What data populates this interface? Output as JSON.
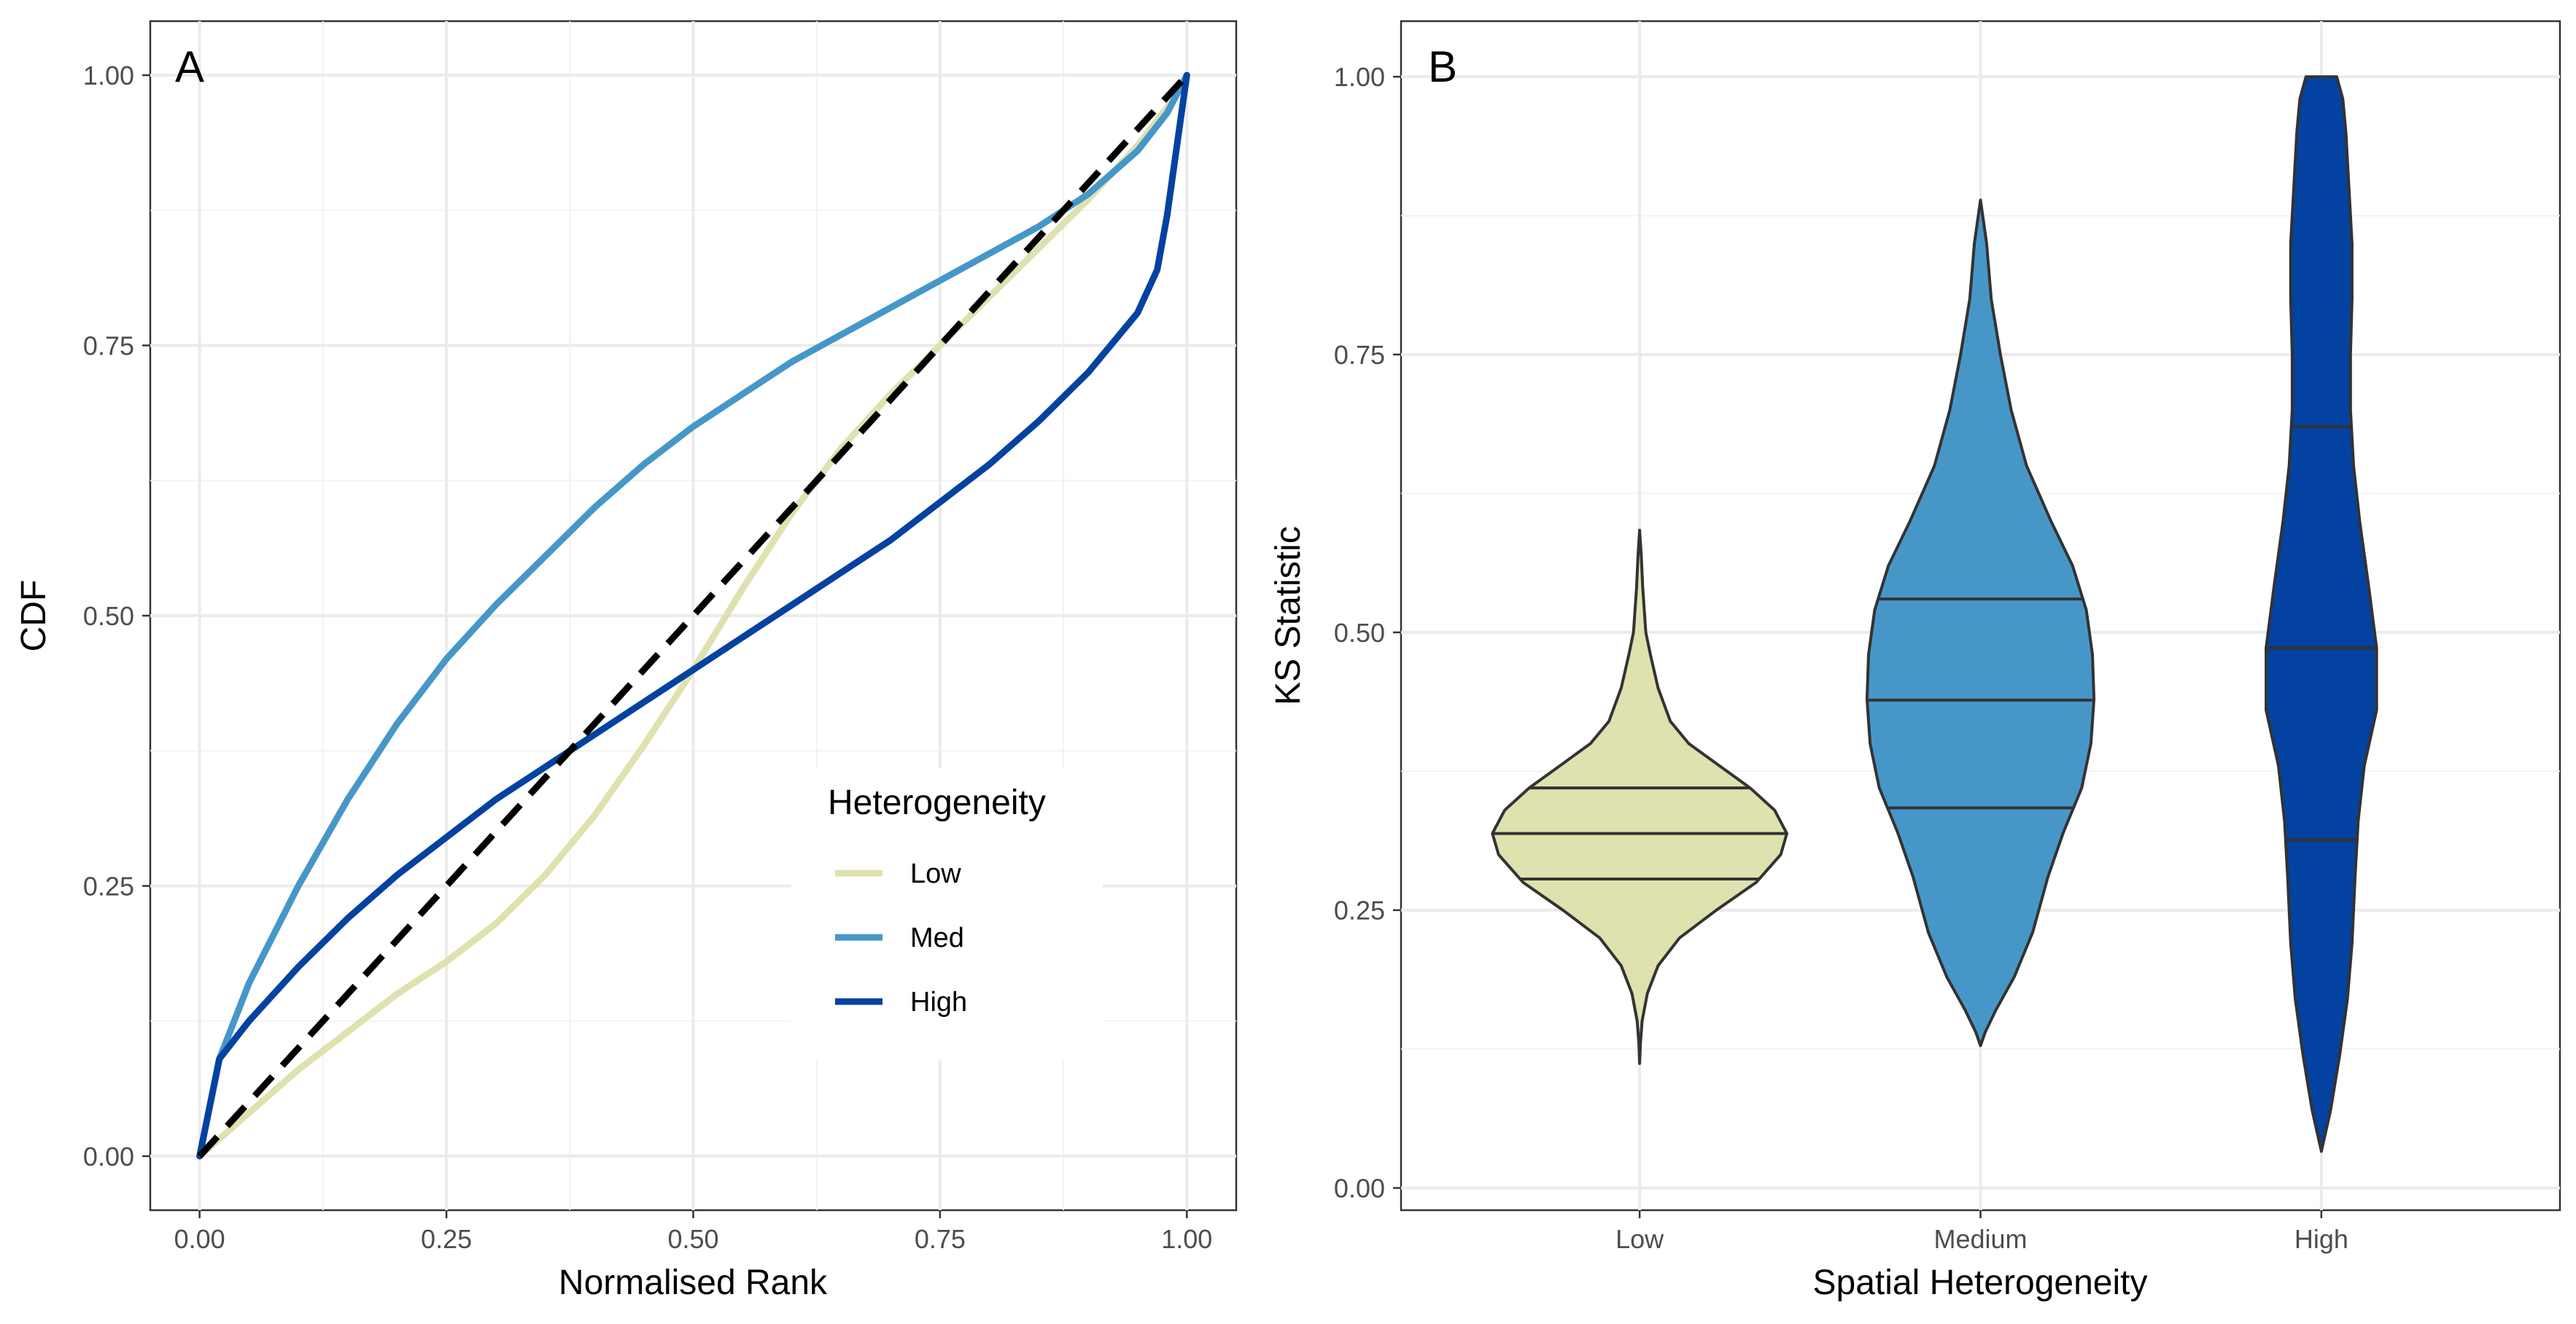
{
  "chart_data": [
    {
      "panel": "A",
      "type": "line",
      "xlabel": "Normalised Rank",
      "ylabel": "CDF",
      "xlim": [
        -0.05,
        1.05
      ],
      "ylim": [
        -0.05,
        1.05
      ],
      "x_ticks": [
        {
          "value": 0,
          "label": "0.00"
        },
        {
          "value": 0.25,
          "label": "0.25"
        },
        {
          "value": 0.5,
          "label": "0.50"
        },
        {
          "value": 0.75,
          "label": "0.75"
        },
        {
          "value": 1,
          "label": "1.00"
        }
      ],
      "y_ticks": [
        {
          "value": 0,
          "label": "0.00"
        },
        {
          "value": 0.25,
          "label": "0.25"
        },
        {
          "value": 0.5,
          "label": "0.50"
        },
        {
          "value": 0.75,
          "label": "0.75"
        },
        {
          "value": 1,
          "label": "1.00"
        }
      ],
      "grid": true,
      "legend": {
        "title": "Heterogeneity",
        "position": "bottom-right"
      },
      "reference_line": {
        "name": "1:1 line",
        "x": [
          0,
          1
        ],
        "y": [
          0,
          1
        ],
        "color": "#000000",
        "style": "dashed"
      },
      "series": [
        {
          "name": "Low",
          "color": "#DFE1AE",
          "x": [
            0,
            0.05,
            0.1,
            0.15,
            0.2,
            0.25,
            0.3,
            0.35,
            0.4,
            0.45,
            0.5,
            0.55,
            0.6,
            0.65,
            0.7,
            0.75,
            0.8,
            0.85,
            0.9,
            0.95,
            0.98,
            1.0
          ],
          "y": [
            0,
            0.04,
            0.08,
            0.115,
            0.15,
            0.18,
            0.215,
            0.26,
            0.315,
            0.38,
            0.45,
            0.525,
            0.595,
            0.655,
            0.705,
            0.75,
            0.795,
            0.84,
            0.885,
            0.935,
            0.97,
            1.0
          ]
        },
        {
          "name": "Med",
          "color": "#4697C8",
          "x": [
            0,
            0.02,
            0.05,
            0.1,
            0.15,
            0.2,
            0.25,
            0.3,
            0.35,
            0.4,
            0.45,
            0.5,
            0.55,
            0.6,
            0.65,
            0.7,
            0.75,
            0.8,
            0.85,
            0.9,
            0.95,
            0.98,
            1.0
          ],
          "y": [
            0,
            0.09,
            0.16,
            0.25,
            0.33,
            0.4,
            0.46,
            0.51,
            0.555,
            0.6,
            0.64,
            0.675,
            0.705,
            0.735,
            0.76,
            0.785,
            0.81,
            0.835,
            0.86,
            0.89,
            0.93,
            0.965,
            1.0
          ]
        },
        {
          "name": "High",
          "color": "#0342A0",
          "x": [
            0,
            0.02,
            0.05,
            0.1,
            0.15,
            0.2,
            0.25,
            0.3,
            0.35,
            0.4,
            0.45,
            0.5,
            0.55,
            0.6,
            0.65,
            0.7,
            0.75,
            0.8,
            0.85,
            0.9,
            0.95,
            0.97,
            0.98,
            1.0
          ],
          "y": [
            0,
            0.09,
            0.125,
            0.175,
            0.22,
            0.26,
            0.295,
            0.33,
            0.36,
            0.39,
            0.42,
            0.45,
            0.48,
            0.51,
            0.54,
            0.57,
            0.605,
            0.64,
            0.68,
            0.725,
            0.78,
            0.82,
            0.87,
            1.0
          ]
        }
      ]
    },
    {
      "panel": "B",
      "type": "violin",
      "xlabel": "Spatial Heterogeneity",
      "ylabel": "KS Statistic",
      "ylim": [
        -0.02,
        1.05
      ],
      "y_ticks": [
        {
          "value": 0,
          "label": "0.00"
        },
        {
          "value": 0.25,
          "label": "0.25"
        },
        {
          "value": 0.5,
          "label": "0.50"
        },
        {
          "value": 0.75,
          "label": "0.75"
        },
        {
          "value": 1,
          "label": "1.00"
        }
      ],
      "grid": true,
      "categories": [
        "Low",
        "Medium",
        "High"
      ],
      "violins": [
        {
          "name": "Low",
          "color": "#DFE1AE",
          "quartiles": [
            0.278,
            0.319,
            0.36
          ],
          "profile": [
            [
              0.112,
              0.0
            ],
            [
              0.13,
              0.005
            ],
            [
              0.15,
              0.016
            ],
            [
              0.175,
              0.05
            ],
            [
              0.2,
              0.12
            ],
            [
              0.225,
              0.26
            ],
            [
              0.25,
              0.5
            ],
            [
              0.275,
              0.76
            ],
            [
              0.3,
              0.92
            ],
            [
              0.319,
              0.96
            ],
            [
              0.34,
              0.88
            ],
            [
              0.36,
              0.72
            ],
            [
              0.38,
              0.52
            ],
            [
              0.4,
              0.32
            ],
            [
              0.42,
              0.2
            ],
            [
              0.45,
              0.12
            ],
            [
              0.48,
              0.07
            ],
            [
              0.5,
              0.04
            ],
            [
              0.54,
              0.02
            ],
            [
              0.57,
              0.01
            ],
            [
              0.592,
              0.0
            ]
          ]
        },
        {
          "name": "Medium",
          "color": "#4697C8",
          "quartiles": [
            0.342,
            0.439,
            0.53
          ],
          "profile": [
            [
              0.128,
              0.0
            ],
            [
              0.14,
              0.03
            ],
            [
              0.16,
              0.1
            ],
            [
              0.19,
              0.22
            ],
            [
              0.23,
              0.34
            ],
            [
              0.28,
              0.44
            ],
            [
              0.32,
              0.54
            ],
            [
              0.36,
              0.66
            ],
            [
              0.4,
              0.72
            ],
            [
              0.44,
              0.74
            ],
            [
              0.48,
              0.73
            ],
            [
              0.52,
              0.69
            ],
            [
              0.56,
              0.6
            ],
            [
              0.6,
              0.46
            ],
            [
              0.65,
              0.3
            ],
            [
              0.7,
              0.2
            ],
            [
              0.75,
              0.13
            ],
            [
              0.8,
              0.07
            ],
            [
              0.85,
              0.04
            ],
            [
              0.889,
              0.0
            ]
          ]
        },
        {
          "name": "High",
          "color": "#0342A0",
          "quartiles": [
            0.313,
            0.486,
            0.685
          ],
          "profile": [
            [
              0.033,
              0.0
            ],
            [
              0.07,
              0.06
            ],
            [
              0.12,
              0.12
            ],
            [
              0.17,
              0.17
            ],
            [
              0.22,
              0.2
            ],
            [
              0.28,
              0.22
            ],
            [
              0.33,
              0.24
            ],
            [
              0.38,
              0.28
            ],
            [
              0.43,
              0.36
            ],
            [
              0.486,
              0.36
            ],
            [
              0.54,
              0.31
            ],
            [
              0.6,
              0.25
            ],
            [
              0.65,
              0.21
            ],
            [
              0.7,
              0.19
            ],
            [
              0.75,
              0.19
            ],
            [
              0.8,
              0.2
            ],
            [
              0.85,
              0.2
            ],
            [
              0.9,
              0.18
            ],
            [
              0.95,
              0.16
            ],
            [
              0.98,
              0.14
            ],
            [
              1.0,
              0.1
            ]
          ]
        }
      ]
    }
  ],
  "panel_tags": {
    "a": "A",
    "b": "B"
  }
}
